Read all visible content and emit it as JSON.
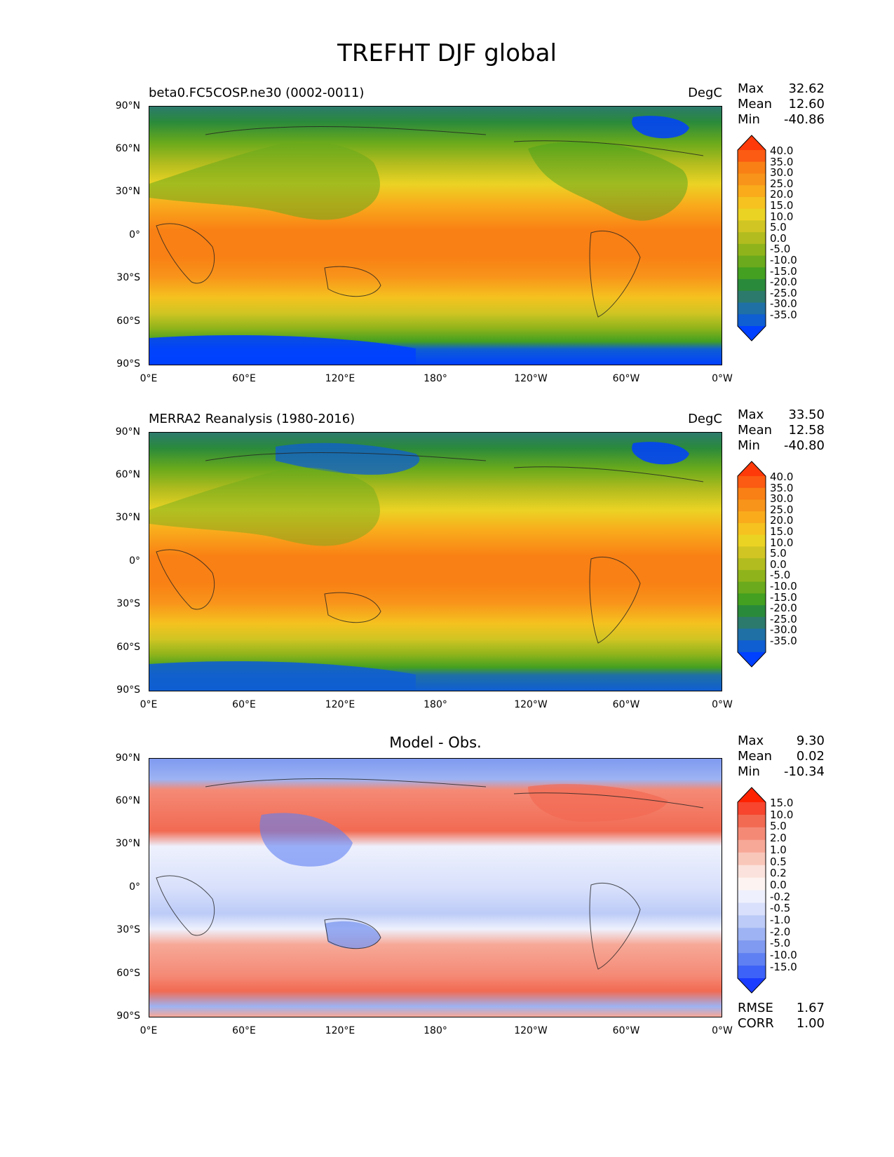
{
  "figure": {
    "title": "TREFHT DJF global"
  },
  "axes": {
    "lat_ticks": [
      "90°N",
      "60°N",
      "30°N",
      "0°",
      "30°S",
      "60°S",
      "90°S"
    ],
    "lon_ticks": [
      "0°E",
      "60°E",
      "120°E",
      "180°",
      "120°W",
      "60°W",
      "0°W"
    ]
  },
  "panels": [
    {
      "id": "test",
      "title": "beta0.FC5COSP.ne30 (0002-0011)",
      "units": "DegC",
      "stats": [
        {
          "label": "Max",
          "value": "32.62"
        },
        {
          "label": "Mean",
          "value": "12.60"
        },
        {
          "label": "Min",
          "value": "-40.86"
        }
      ],
      "colorbar_labels": [
        "40.0",
        "35.0",
        "30.0",
        "25.0",
        "20.0",
        "15.0",
        "10.0",
        "5.0",
        "0.0",
        "-5.0",
        "-10.0",
        "-15.0",
        "-20.0",
        "-25.0",
        "-30.0",
        "-35.0"
      ],
      "colorbar_colors": [
        "#fe3a0a",
        "#fb5b12",
        "#f98014",
        "#f8941a",
        "#f9ab1c",
        "#f5c21f",
        "#ebd324",
        "#d0c523",
        "#b2bc1e",
        "#8fb41b",
        "#6aaa1c",
        "#43a020",
        "#2a8a3b",
        "#2c7a6c",
        "#1f70a5",
        "#0f5ed2",
        "#0040ff"
      ]
    },
    {
      "id": "reference",
      "title": "MERRA2 Reanalysis (1980-2016)",
      "units": "DegC",
      "stats": [
        {
          "label": "Max",
          "value": "33.50"
        },
        {
          "label": "Mean",
          "value": "12.58"
        },
        {
          "label": "Min",
          "value": "-40.80"
        }
      ],
      "colorbar_labels": [
        "40.0",
        "35.0",
        "30.0",
        "25.0",
        "20.0",
        "15.0",
        "10.0",
        "5.0",
        "0.0",
        "-5.0",
        "-10.0",
        "-15.0",
        "-20.0",
        "-25.0",
        "-30.0",
        "-35.0"
      ],
      "colorbar_colors": [
        "#fe3a0a",
        "#fb5b12",
        "#f98014",
        "#f8941a",
        "#f9ab1c",
        "#f5c21f",
        "#ebd324",
        "#d0c523",
        "#b2bc1e",
        "#8fb41b",
        "#6aaa1c",
        "#43a020",
        "#2a8a3b",
        "#2c7a6c",
        "#1f70a5",
        "#0f5ed2",
        "#0040ff"
      ]
    },
    {
      "id": "difference",
      "title": "Model - Obs.",
      "units": "",
      "stats": [
        {
          "label": "Max",
          "value": "9.30"
        },
        {
          "label": "Mean",
          "value": "0.02"
        },
        {
          "label": "Min",
          "value": "-10.34"
        }
      ],
      "extra_stats": [
        {
          "label": "RMSE",
          "value": "1.67"
        },
        {
          "label": "CORR",
          "value": "1.00"
        }
      ],
      "colorbar_labels": [
        "15.0",
        "10.0",
        "5.0",
        "2.0",
        "1.0",
        "0.5",
        "0.2",
        "0.0",
        "-0.2",
        "-0.5",
        "-1.0",
        "-2.0",
        "-5.0",
        "-10.0",
        "-15.0"
      ],
      "colorbar_colors": [
        "#ff2200",
        "#f7452e",
        "#f26a52",
        "#f48a76",
        "#f7a897",
        "#f9c6ba",
        "#fbe2dc",
        "#fdf4f2",
        "#eef1fd",
        "#d8e0fb",
        "#bccbf7",
        "#9db3f3",
        "#7f9af0",
        "#5f80f3",
        "#3d62f7",
        "#1a3cff"
      ]
    }
  ]
}
